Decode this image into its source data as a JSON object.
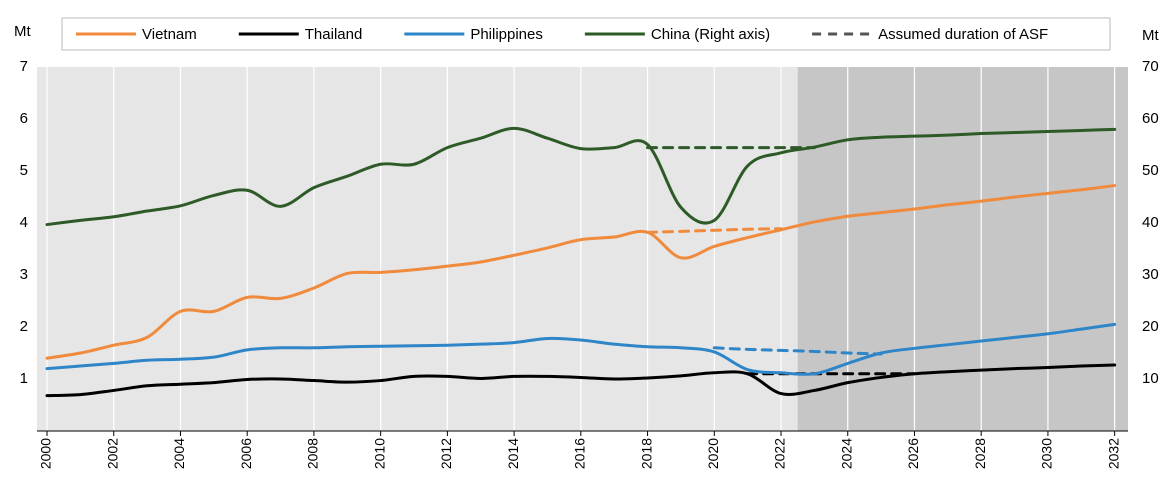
{
  "chart_data": {
    "type": "line",
    "y_unit": "Mt",
    "y2_unit": "Mt",
    "x": [
      2000,
      2001,
      2002,
      2003,
      2004,
      2005,
      2006,
      2007,
      2008,
      2009,
      2010,
      2011,
      2012,
      2013,
      2014,
      2015,
      2016,
      2017,
      2018,
      2019,
      2020,
      2021,
      2022,
      2023,
      2024,
      2025,
      2026,
      2027,
      2028,
      2029,
      2030,
      2031,
      2032
    ],
    "xlim": [
      1999.7,
      2032.4
    ],
    "xticks": [
      2000,
      2002,
      2004,
      2006,
      2008,
      2010,
      2012,
      2014,
      2016,
      2018,
      2020,
      2022,
      2024,
      2026,
      2028,
      2030,
      2032
    ],
    "ylim": [
      0,
      7
    ],
    "yticks": [
      1,
      2,
      3,
      4,
      5,
      6,
      7
    ],
    "y2lim": [
      0,
      70
    ],
    "y2ticks": [
      10,
      20,
      30,
      40,
      50,
      60,
      70
    ],
    "grid": true,
    "shade_from": 2022.5,
    "series": [
      {
        "name": "Vietnam",
        "color": "#f08a3c",
        "values": [
          1.4,
          1.5,
          1.65,
          1.8,
          2.3,
          2.3,
          2.57,
          2.55,
          2.75,
          3.03,
          3.05,
          3.1,
          3.17,
          3.25,
          3.38,
          3.52,
          3.68,
          3.73,
          3.82,
          3.33,
          3.55,
          3.72,
          3.87,
          4.02,
          4.13,
          4.2,
          4.27,
          4.35,
          4.42,
          4.5,
          4.57,
          4.64,
          4.72
        ],
        "asf_values": [
          null,
          null,
          null,
          null,
          null,
          null,
          null,
          null,
          null,
          null,
          null,
          null,
          null,
          null,
          null,
          null,
          null,
          null,
          3.82,
          3.84,
          3.86,
          3.88,
          3.89,
          null,
          null,
          null,
          null,
          null,
          null,
          null,
          null,
          null,
          null
        ]
      },
      {
        "name": "Thailand",
        "color": "#000000",
        "values": [
          0.68,
          0.7,
          0.78,
          0.87,
          0.9,
          0.93,
          0.99,
          1.0,
          0.97,
          0.94,
          0.97,
          1.05,
          1.05,
          1.01,
          1.05,
          1.05,
          1.03,
          1.0,
          1.02,
          1.06,
          1.12,
          1.1,
          0.72,
          0.78,
          0.93,
          1.03,
          1.1,
          1.14,
          1.17,
          1.2,
          1.22,
          1.25,
          1.27
        ],
        "asf_values": [
          null,
          null,
          null,
          null,
          null,
          null,
          null,
          null,
          null,
          null,
          null,
          null,
          null,
          null,
          null,
          null,
          null,
          null,
          null,
          null,
          null,
          1.1,
          1.1,
          1.1,
          1.1,
          1.1,
          1.1,
          null,
          null,
          null,
          null,
          null,
          null
        ]
      },
      {
        "name": "Philippines",
        "color": "#2e86c8",
        "values": [
          1.2,
          1.25,
          1.3,
          1.36,
          1.38,
          1.42,
          1.56,
          1.6,
          1.6,
          1.62,
          1.63,
          1.64,
          1.65,
          1.67,
          1.7,
          1.78,
          1.75,
          1.67,
          1.62,
          1.6,
          1.52,
          1.18,
          1.12,
          1.1,
          1.3,
          1.5,
          1.59,
          1.66,
          1.73,
          1.8,
          1.87,
          1.96,
          2.05
        ],
        "asf_values": [
          null,
          null,
          null,
          null,
          null,
          null,
          null,
          null,
          null,
          null,
          null,
          null,
          null,
          null,
          null,
          null,
          null,
          null,
          null,
          null,
          1.6,
          1.57,
          1.55,
          1.53,
          1.5,
          1.48,
          null,
          null,
          null,
          null,
          null,
          null,
          null
        ]
      },
      {
        "name": "China (Right axis)",
        "color": "#2d5a27",
        "axis": "y2",
        "values": [
          39.7,
          40.5,
          41.2,
          42.3,
          43.3,
          45.3,
          46.3,
          43.2,
          46.8,
          49,
          51.3,
          51.3,
          54.5,
          56.3,
          58.2,
          56.3,
          54.3,
          54.5,
          55.1,
          43,
          40.5,
          51,
          53.5,
          54.6,
          56,
          56.5,
          56.7,
          56.9,
          57.2,
          57.4,
          57.6,
          57.8,
          58
        ],
        "asf_values": [
          null,
          null,
          null,
          null,
          null,
          null,
          null,
          null,
          null,
          null,
          null,
          null,
          null,
          null,
          null,
          null,
          null,
          null,
          54.5,
          54.5,
          54.5,
          54.5,
          54.5,
          54.5,
          null,
          null,
          null,
          null,
          null,
          null,
          null,
          null,
          null
        ]
      }
    ],
    "dashed_legend": {
      "name": "Assumed duration of ASF",
      "color": "#555555"
    }
  }
}
